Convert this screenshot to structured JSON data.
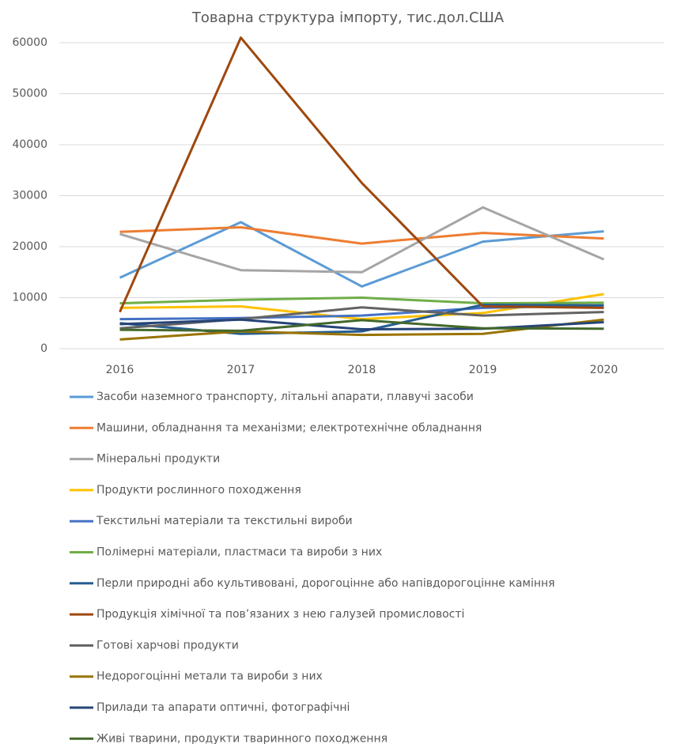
{
  "chart_data": {
    "type": "line",
    "title": "Товарна структура імпорту, тис.дол.США",
    "categories": [
      "2016",
      "2017",
      "2018",
      "2019",
      "2020"
    ],
    "ylim": [
      0,
      60000
    ],
    "yticks": [
      0,
      10000,
      20000,
      30000,
      40000,
      50000,
      60000
    ],
    "grid": true,
    "legend": "bottom",
    "series": [
      {
        "name": "Засоби наземного транспорту, літальні апарати, плавучі засоби",
        "color": "#5b9bd5",
        "values": [
          13900,
          24800,
          12200,
          21000,
          23000
        ]
      },
      {
        "name": "Машини, обладнання та механізми; електротехнічне обладнання",
        "color": "#ed7d31",
        "values": [
          22900,
          23800,
          20600,
          22700,
          21600
        ]
      },
      {
        "name": "Мінеральні продукти",
        "color": "#a5a5a5",
        "values": [
          22500,
          15400,
          15000,
          27700,
          17500
        ]
      },
      {
        "name": "Продукти рослинного походження",
        "color": "#ffc000",
        "values": [
          8000,
          8300,
          5800,
          7000,
          10700
        ]
      },
      {
        "name": "Текстильні матеріали та текстильні вироби",
        "color": "#4472c4",
        "values": [
          5800,
          6000,
          6500,
          8000,
          8500
        ]
      },
      {
        "name": "Полімерні матеріали, пластмаси та вироби з них",
        "color": "#70ad47",
        "values": [
          8900,
          9600,
          10000,
          8900,
          9000
        ]
      },
      {
        "name": "Перли природні або культивовані, дорогоцінне або напівдорогоцінне каміння",
        "color": "#255e91",
        "values": [
          5000,
          2900,
          3400,
          8600,
          8500
        ]
      },
      {
        "name": "Продукція хімічної та пов’язаних з нею галузей промисловості",
        "color": "#9e480e",
        "values": [
          7200,
          61000,
          32500,
          8300,
          8000
        ]
      },
      {
        "name": "Готові харчові продукти",
        "color": "#636363",
        "values": [
          4000,
          5800,
          8100,
          6500,
          7200
        ]
      },
      {
        "name": "Недорогоцінні метали та вироби з них",
        "color": "#997300",
        "values": [
          1800,
          3400,
          2700,
          2900,
          5700
        ]
      },
      {
        "name": "Прилади та апарати оптичні, фотографічні",
        "color": "#264478",
        "values": [
          4800,
          5700,
          3800,
          3900,
          5200
        ]
      },
      {
        "name": "Живі тварини, продукти тваринного походження",
        "color": "#43682b",
        "values": [
          3700,
          3500,
          5600,
          4000,
          3900
        ]
      }
    ]
  }
}
